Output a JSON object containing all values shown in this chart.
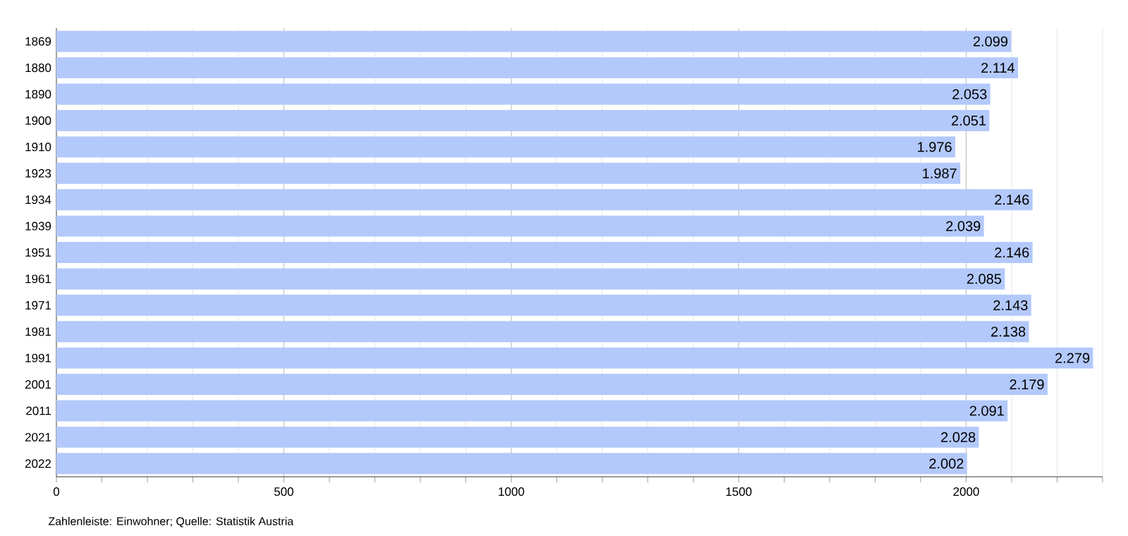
{
  "chart_data": {
    "type": "bar",
    "orientation": "horizontal",
    "categories": [
      "1869",
      "1880",
      "1890",
      "1900",
      "1910",
      "1923",
      "1934",
      "1939",
      "1951",
      "1961",
      "1971",
      "1981",
      "1991",
      "2001",
      "2011",
      "2021",
      "2022"
    ],
    "values": [
      2099,
      2114,
      2053,
      2051,
      1976,
      1987,
      2146,
      2039,
      2146,
      2085,
      2143,
      2138,
      2279,
      2179,
      2091,
      2028,
      2002
    ],
    "value_labels": [
      "2.099",
      "2.114",
      "2.053",
      "2.051",
      "1.976",
      "1.987",
      "2.146",
      "2.039",
      "2.146",
      "2.085",
      "2.143",
      "2.138",
      "2.279",
      "2.179",
      "2.091",
      "2.028",
      "2.002"
    ],
    "color": "#b3c9fb",
    "xlim": [
      0,
      2300
    ],
    "xticks": [
      0,
      {
        "value": 100,
        "label": null
      },
      {
        "value": 200,
        "label": null
      },
      {
        "value": 300,
        "label": null
      },
      {
        "value": 400,
        "label": null
      },
      500,
      {
        "value": 600,
        "label": null
      },
      {
        "value": 700,
        "label": null
      },
      {
        "value": 800,
        "label": null
      },
      {
        "value": 900,
        "label": null
      },
      1000,
      {
        "value": 1100,
        "label": null
      },
      {
        "value": 1200,
        "label": null
      },
      {
        "value": 1300,
        "label": null
      },
      {
        "value": 1400,
        "label": null
      },
      1500,
      {
        "value": 1600,
        "label": null
      },
      {
        "value": 1700,
        "label": null
      },
      {
        "value": 1800,
        "label": null
      },
      {
        "value": 1900,
        "label": null
      },
      2000,
      {
        "value": 2100,
        "label": null
      },
      {
        "value": 2200,
        "label": null
      },
      {
        "value": 2300,
        "label": null
      }
    ],
    "grid": "x",
    "annotations": [
      "Zahlenleiste: Einwohner; Quelle: Statistik Austria"
    ]
  }
}
